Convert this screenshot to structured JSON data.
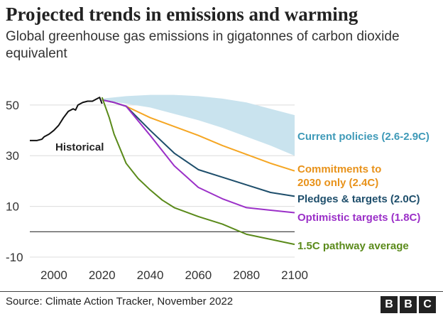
{
  "title": "Projected trends in emissions and warming",
  "subtitle": "Global greenhouse gas emissions in gigatonnes of carbon dioxide equivalent",
  "source": "Source: Climate Action Tracker, November 2022",
  "logo": [
    "B",
    "B",
    "C"
  ],
  "chart_data": {
    "type": "line",
    "xlim": [
      1990,
      2100
    ],
    "ylim": [
      -10,
      55
    ],
    "x_ticks": [
      2000,
      2020,
      2040,
      2060,
      2080,
      2100
    ],
    "y_ticks": [
      -10,
      10,
      30,
      50
    ],
    "grid": true,
    "zero_line": 0,
    "band": {
      "name": "Current policies (2.6-2.9C)",
      "color": "#c9e3ee",
      "upper": [
        [
          2020,
          52.5
        ],
        [
          2030,
          53.5
        ],
        [
          2040,
          54
        ],
        [
          2050,
          54
        ],
        [
          2060,
          53.5
        ],
        [
          2070,
          52.5
        ],
        [
          2080,
          51
        ],
        [
          2090,
          48.5
        ],
        [
          2100,
          46
        ]
      ],
      "lower": [
        [
          2020,
          52
        ],
        [
          2030,
          50.5
        ],
        [
          2040,
          49
        ],
        [
          2050,
          46.5
        ],
        [
          2060,
          44
        ],
        [
          2070,
          41
        ],
        [
          2080,
          37.5
        ],
        [
          2090,
          34
        ],
        [
          2100,
          30
        ]
      ]
    },
    "series": [
      {
        "name": "Historical",
        "color": "#111111",
        "points": [
          [
            1990,
            36
          ],
          [
            1993,
            36
          ],
          [
            1995,
            36.5
          ],
          [
            1996,
            37.5
          ],
          [
            1998,
            38.5
          ],
          [
            2000,
            40
          ],
          [
            2002,
            42
          ],
          [
            2004,
            45
          ],
          [
            2006,
            47.5
          ],
          [
            2008,
            48.5
          ],
          [
            2009,
            48
          ],
          [
            2010,
            50
          ],
          [
            2012,
            51
          ],
          [
            2014,
            51.5
          ],
          [
            2016,
            51.5
          ],
          [
            2018,
            52.5
          ],
          [
            2019,
            53
          ],
          [
            2020,
            50.5
          ]
        ]
      },
      {
        "name": "Commitments to 2030 only (2.4C)",
        "color": "#f5a623",
        "points": [
          [
            2020,
            52
          ],
          [
            2025,
            51
          ],
          [
            2030,
            49.5
          ],
          [
            2040,
            45
          ],
          [
            2050,
            41.5
          ],
          [
            2060,
            38
          ],
          [
            2070,
            34
          ],
          [
            2080,
            30.5
          ],
          [
            2090,
            27
          ],
          [
            2100,
            24
          ]
        ]
      },
      {
        "name": "Pledges & targets (2.0C)",
        "color": "#1e4e6b",
        "points": [
          [
            2020,
            52
          ],
          [
            2025,
            51
          ],
          [
            2030,
            49.5
          ],
          [
            2040,
            40
          ],
          [
            2050,
            31
          ],
          [
            2060,
            24.5
          ],
          [
            2070,
            21.5
          ],
          [
            2080,
            18.5
          ],
          [
            2090,
            15.5
          ],
          [
            2100,
            14
          ]
        ]
      },
      {
        "name": "Optimistic targets (1.8C)",
        "color": "#9b30c8",
        "points": [
          [
            2020,
            52
          ],
          [
            2025,
            51
          ],
          [
            2030,
            49.5
          ],
          [
            2040,
            38
          ],
          [
            2050,
            26
          ],
          [
            2060,
            17.5
          ],
          [
            2070,
            13
          ],
          [
            2080,
            9.5
          ],
          [
            2090,
            8.5
          ],
          [
            2100,
            7.5
          ]
        ]
      },
      {
        "name": "1.5C pathway average",
        "color": "#5a8a1a",
        "points": [
          [
            2020,
            53
          ],
          [
            2023,
            45
          ],
          [
            2025,
            38.5
          ],
          [
            2030,
            27
          ],
          [
            2035,
            21
          ],
          [
            2040,
            16.5
          ],
          [
            2045,
            12.5
          ],
          [
            2050,
            9.5
          ],
          [
            2060,
            6
          ],
          [
            2070,
            3
          ],
          [
            2080,
            -1
          ],
          [
            2090,
            -3
          ],
          [
            2100,
            -5
          ]
        ]
      }
    ],
    "labels": {
      "historical": "Historical",
      "current": "Current policies (2.6-2.9C)",
      "commitments": [
        "Commitments to",
        "2030 only (2.4C)"
      ],
      "pledges": "Pledges & targets (2.0C)",
      "optimistic": "Optimistic targets (1.8C)",
      "pathway": "1.5C pathway average"
    }
  }
}
